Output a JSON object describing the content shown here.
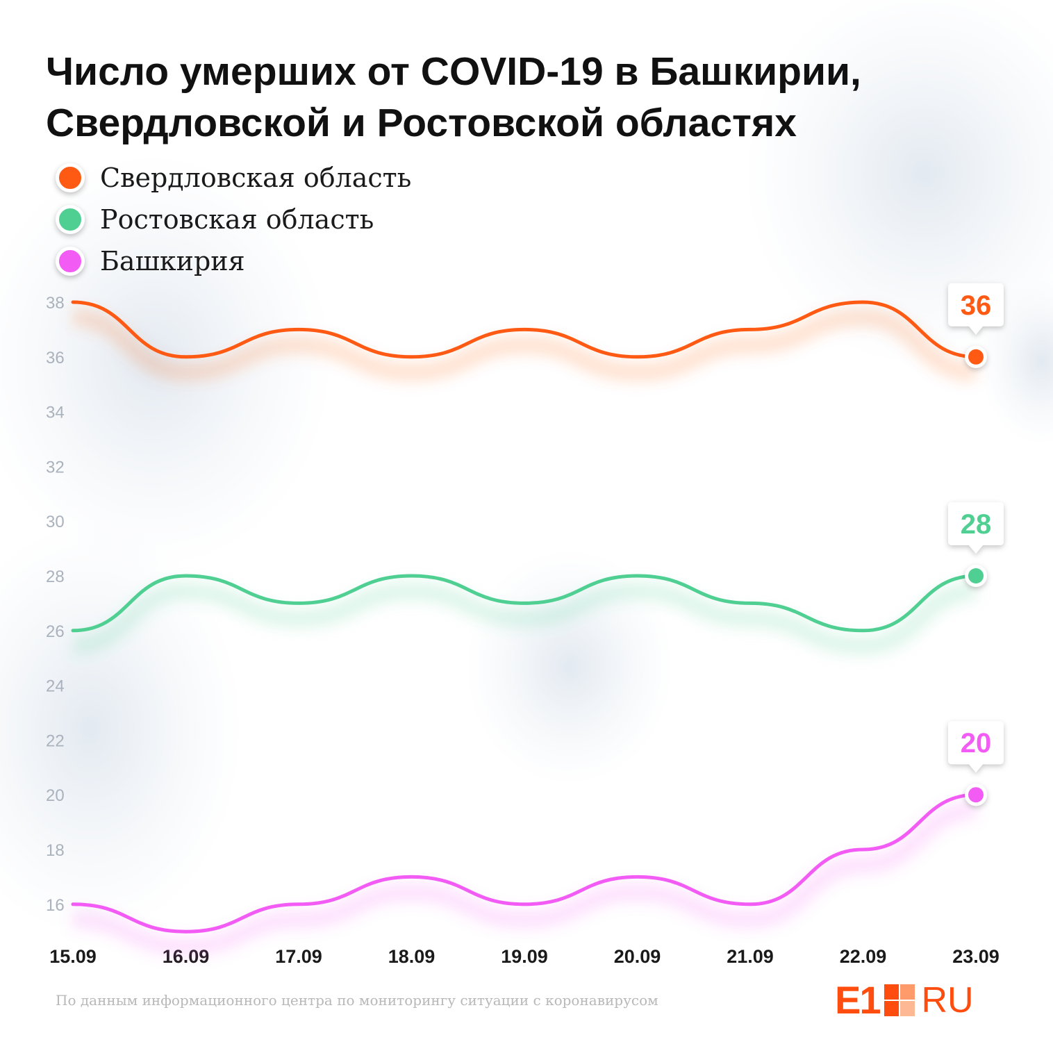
{
  "title": {
    "line1": "Число умерших от COVID-19 в Башкирии,",
    "line2": "Свердловской и Ростовской областях"
  },
  "legend": [
    {
      "label": "Свердловская область",
      "color": "#ff5a14"
    },
    {
      "label": "Ростовская область",
      "color": "#4fcf92"
    },
    {
      "label": "Башкирия",
      "color": "#f25cf5"
    }
  ],
  "chart_data": {
    "type": "line",
    "categories": [
      "15.09",
      "16.09",
      "17.09",
      "18.09",
      "19.09",
      "20.09",
      "21.09",
      "22.09",
      "23.09"
    ],
    "y_ticks": [
      38,
      36,
      34,
      32,
      30,
      28,
      26,
      24,
      22,
      20,
      18,
      16
    ],
    "ylim": [
      15,
      38
    ],
    "grid": false,
    "legend_position": "top-left",
    "series": [
      {
        "name": "Свердловская область",
        "color": "#ff5a14",
        "values": [
          38,
          36,
          37,
          36,
          37,
          36,
          37,
          38,
          36
        ],
        "last_label": "36"
      },
      {
        "name": "Ростовская область",
        "color": "#4fcf92",
        "values": [
          26,
          28,
          27,
          28,
          27,
          28,
          27,
          26,
          28
        ],
        "last_label": "28"
      },
      {
        "name": "Башкирия",
        "color": "#f25cf5",
        "values": [
          16,
          15,
          16,
          17,
          16,
          17,
          16,
          18,
          20
        ],
        "last_label": "20"
      }
    ]
  },
  "footer": {
    "source": "По данным информационного центра по мониторингу ситуации с коронавирусом"
  },
  "logo": {
    "left": "E1",
    "right": "RU"
  }
}
